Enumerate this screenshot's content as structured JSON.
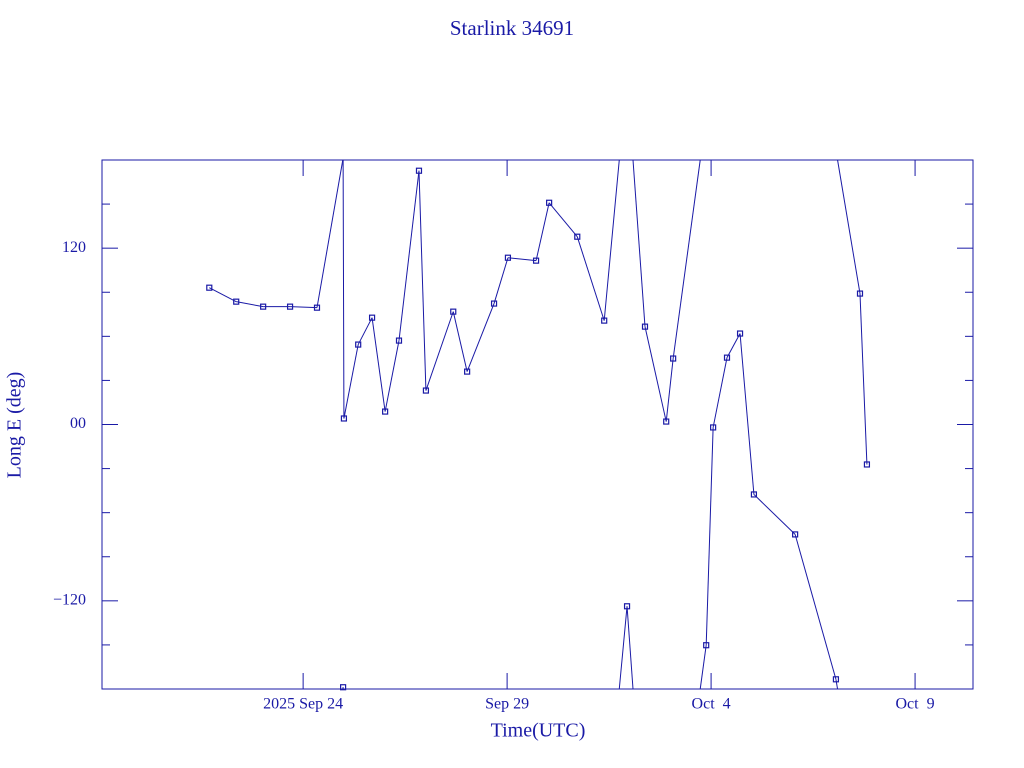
{
  "chart_data": {
    "type": "line",
    "title": "Starlink 34691",
    "x_label": "Time(UTC)",
    "y_label": "Long E (deg)",
    "color": "#1a1aa6",
    "x": [
      263.7,
      264.36,
      265.02,
      265.68,
      266.34,
      266.98,
      267.0,
      267.35,
      267.69,
      268.01,
      268.35,
      268.84,
      269.01,
      269.68,
      270.02,
      270.68,
      271.02,
      271.71,
      272.03,
      272.72,
      273.38,
      273.94,
      274.38,
      274.9,
      275.07,
      275.88,
      276.05,
      276.39,
      276.71,
      277.05,
      278.06,
      279.06,
      279.65,
      279.82
    ],
    "values": [
      93.1,
      83.6,
      80.2,
      80.2,
      79.5,
      -178.8,
      4.1,
      54.4,
      72.7,
      8.8,
      57.1,
      172.7,
      23.1,
      76.8,
      36.0,
      82.3,
      113.5,
      111.5,
      150.9,
      127.8,
      70.7,
      -123.7,
      66.6,
      2.0,
      44.9,
      -150.2,
      -2.0,
      45.5,
      61.9,
      -47.6,
      -74.8,
      -173.4,
      89.1,
      -27.2
    ],
    "xlim": [
      261.07,
      282.42
    ],
    "xticks": [
      {
        "value": 266,
        "label": "2025 Sep 24"
      },
      {
        "value": 271,
        "label": "Sep 29"
      },
      {
        "value": 276,
        "label": "Oct  4"
      },
      {
        "value": 281,
        "label": "Oct  9"
      }
    ],
    "ylim": [
      -180,
      180
    ],
    "yticks": [
      {
        "value": -120,
        "label": "−120"
      },
      {
        "value": 0,
        "label": "00"
      },
      120
    ],
    "yminorticks": [
      -150,
      -90,
      -60,
      -30,
      30,
      60,
      90,
      150
    ]
  }
}
